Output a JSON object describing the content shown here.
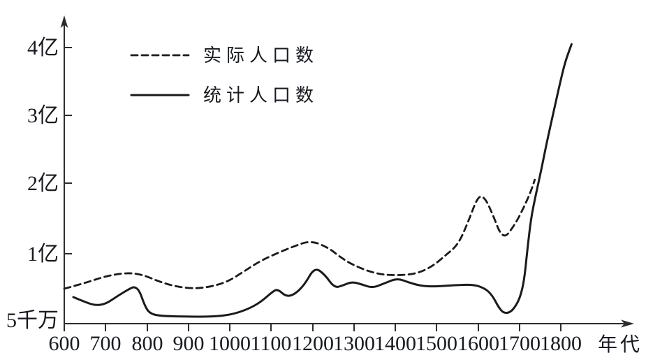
{
  "page": {
    "background": "#ffffff"
  },
  "colors": {
    "line": "#1b1b1b",
    "axis": "#2d2d2d",
    "text": "#171a20"
  },
  "chart_data": {
    "type": "line",
    "title": "",
    "legend_position": "top-left",
    "grid": "off",
    "x_axis": {
      "title": "年代",
      "ticks": [
        {
          "year": 600,
          "label": "600"
        },
        {
          "year": 700,
          "label": "700"
        },
        {
          "year": 800,
          "label": "800"
        },
        {
          "year": 900,
          "label": "900"
        },
        {
          "year": 1000,
          "label": "1000"
        },
        {
          "year": 1100,
          "label": "1100"
        },
        {
          "year": 1200,
          "label": "1200"
        },
        {
          "year": 1300,
          "label": "1300"
        },
        {
          "year": 1400,
          "label": "1400"
        },
        {
          "year": 1500,
          "label": "1500"
        },
        {
          "year": 1600,
          "label": "1600"
        },
        {
          "year": 1700,
          "label": "1700"
        },
        {
          "year": 1800,
          "label": "1800"
        }
      ],
      "range": [
        600,
        1860
      ]
    },
    "y_axis": {
      "unit": "亿 (hundred million people)",
      "scale_note": "non-linear axis: ticks 5千万,1亿,2亿,3亿,4亿 are equally spaced",
      "ticks": [
        {
          "value": 0.5,
          "label": "5千万"
        },
        {
          "value": 1,
          "label": "1亿"
        },
        {
          "value": 2,
          "label": "2亿"
        },
        {
          "value": 3,
          "label": "3亿"
        },
        {
          "value": 4,
          "label": "4亿"
        }
      ]
    },
    "series": [
      {
        "name": "实际人口数",
        "style": "dashed",
        "points": [
          [
            600,
            0.75
          ],
          [
            650,
            0.79
          ],
          [
            700,
            0.84
          ],
          [
            752,
            0.865
          ],
          [
            790,
            0.85
          ],
          [
            830,
            0.8
          ],
          [
            870,
            0.765
          ],
          [
            915,
            0.75
          ],
          [
            955,
            0.765
          ],
          [
            995,
            0.8
          ],
          [
            1035,
            0.875
          ],
          [
            1072,
            0.945
          ],
          [
            1100,
            0.985
          ],
          [
            1152,
            1.1
          ],
          [
            1196,
            1.19
          ],
          [
            1240,
            1.08
          ],
          [
            1265,
            0.98
          ],
          [
            1300,
            0.915
          ],
          [
            1355,
            0.855
          ],
          [
            1400,
            0.845
          ],
          [
            1450,
            0.855
          ],
          [
            1490,
            0.91
          ],
          [
            1522,
            0.99
          ],
          [
            1552,
            1.13
          ],
          [
            1576,
            1.45
          ],
          [
            1600,
            1.82
          ],
          [
            1616,
            1.8
          ],
          [
            1634,
            1.58
          ],
          [
            1660,
            1.19
          ],
          [
            1688,
            1.4
          ],
          [
            1710,
            1.65
          ],
          [
            1727,
            1.87
          ],
          [
            1737,
            2.05
          ]
        ]
      },
      {
        "name": "统计人口数",
        "style": "solid",
        "points": [
          [
            622,
            0.69
          ],
          [
            650,
            0.655
          ],
          [
            675,
            0.63
          ],
          [
            700,
            0.64
          ],
          [
            730,
            0.7
          ],
          [
            758,
            0.75
          ],
          [
            770,
            0.765
          ],
          [
            782,
            0.735
          ],
          [
            793,
            0.64
          ],
          [
            805,
            0.575
          ],
          [
            830,
            0.555
          ],
          [
            900,
            0.55
          ],
          [
            960,
            0.55
          ],
          [
            1005,
            0.565
          ],
          [
            1045,
            0.605
          ],
          [
            1075,
            0.655
          ],
          [
            1100,
            0.72
          ],
          [
            1115,
            0.75
          ],
          [
            1135,
            0.695
          ],
          [
            1155,
            0.705
          ],
          [
            1180,
            0.775
          ],
          [
            1205,
            0.905
          ],
          [
            1230,
            0.85
          ],
          [
            1253,
            0.755
          ],
          [
            1275,
            0.775
          ],
          [
            1295,
            0.8
          ],
          [
            1320,
            0.78
          ],
          [
            1345,
            0.755
          ],
          [
            1375,
            0.79
          ],
          [
            1405,
            0.825
          ],
          [
            1432,
            0.795
          ],
          [
            1462,
            0.77
          ],
          [
            1495,
            0.765
          ],
          [
            1540,
            0.775
          ],
          [
            1590,
            0.78
          ],
          [
            1618,
            0.75
          ],
          [
            1635,
            0.7
          ],
          [
            1650,
            0.615
          ],
          [
            1662,
            0.575
          ],
          [
            1678,
            0.58
          ],
          [
            1692,
            0.63
          ],
          [
            1703,
            0.7
          ],
          [
            1712,
            0.82
          ],
          [
            1720,
            1.1
          ],
          [
            1728,
            1.5
          ],
          [
            1740,
            1.85
          ],
          [
            1753,
            2.2
          ],
          [
            1766,
            2.6
          ],
          [
            1780,
            2.98
          ],
          [
            1796,
            3.42
          ],
          [
            1810,
            3.78
          ],
          [
            1826,
            4.05
          ]
        ]
      }
    ]
  }
}
